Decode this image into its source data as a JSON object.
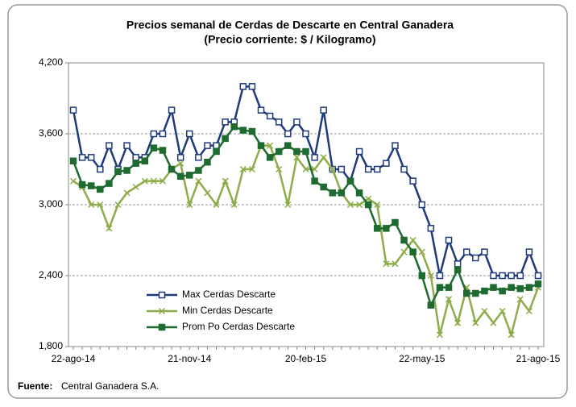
{
  "chart_data": {
    "type": "line",
    "title": "Precios semanal de Cerdas de Descarte en Central Ganadera",
    "subtitle": "(Precio corriente: $ / Kilogramo)",
    "categories": [
      "22-ago-14",
      null,
      null,
      null,
      null,
      null,
      null,
      null,
      null,
      null,
      null,
      null,
      null,
      "21-nov-14",
      null,
      null,
      null,
      null,
      null,
      null,
      null,
      null,
      null,
      null,
      null,
      null,
      "20-feb-15",
      null,
      null,
      null,
      null,
      null,
      null,
      null,
      null,
      null,
      null,
      null,
      null,
      "22-may-15",
      null,
      null,
      null,
      null,
      null,
      null,
      null,
      null,
      null,
      null,
      null,
      null,
      "21-ago-15"
    ],
    "series": [
      {
        "name": "Max Cerdas Descarte",
        "color": "#1f3a7a",
        "marker": "square-open",
        "values": [
          3800,
          3400,
          3400,
          3300,
          3500,
          3300,
          3500,
          3400,
          3400,
          3600,
          3600,
          3800,
          3400,
          3600,
          3400,
          3500,
          3500,
          3700,
          3700,
          4000,
          4000,
          3800,
          3750,
          3700,
          3600,
          3700,
          3600,
          3400,
          3800,
          3300,
          3300,
          3200,
          3450,
          3300,
          3300,
          3350,
          3500,
          3300,
          3200,
          3000,
          2800,
          2400,
          2700,
          2500,
          2600,
          2550,
          2600,
          2400,
          2400,
          2400,
          2400,
          2600,
          2400
        ]
      },
      {
        "name": "Min Cerdas Descarte",
        "color": "#8fac4a",
        "marker": "cross",
        "values": [
          3200,
          3150,
          3000,
          3000,
          2800,
          3000,
          3100,
          3150,
          3200,
          3200,
          3200,
          3300,
          3350,
          3000,
          3200,
          3100,
          3000,
          3200,
          3000,
          3300,
          3300,
          3500,
          3500,
          3300,
          3000,
          3400,
          3300,
          3300,
          3400,
          3300,
          3100,
          3000,
          3000,
          3050,
          3000,
          2500,
          2500,
          2600,
          2700,
          2600,
          2400,
          1900,
          2200,
          2000,
          2300,
          2000,
          2100,
          2000,
          2100,
          1900,
          2200,
          2100,
          2300
        ]
      },
      {
        "name": "Prom Po Cerdas Descarte",
        "color": "#1e6b30",
        "marker": "square",
        "values": [
          3370,
          3170,
          3160,
          3130,
          3180,
          3280,
          3290,
          3350,
          3370,
          3480,
          3460,
          3300,
          3240,
          3250,
          3290,
          3360,
          3450,
          3560,
          3660,
          3630,
          3620,
          3500,
          3400,
          3450,
          3500,
          3450,
          3450,
          3200,
          3150,
          3100,
          3100,
          3200,
          3100,
          3000,
          2800,
          2800,
          2850,
          2700,
          2600,
          2400,
          2150,
          2300,
          2300,
          2450,
          2250,
          2250,
          2270,
          2300,
          2270,
          2300,
          2290,
          2300,
          2330
        ]
      }
    ],
    "ylim": [
      1800,
      4200
    ],
    "yticks": [
      {
        "value": 1800,
        "label": "1,800"
      },
      {
        "value": 2400,
        "label": "2,400"
      },
      {
        "value": 3000,
        "label": "3,000"
      },
      {
        "value": 3600,
        "label": "3,600"
      },
      {
        "value": 4200,
        "label": "4,200"
      }
    ],
    "grid": true,
    "legend": "lower-left",
    "source_label": "Fuente:",
    "source": "Central Ganadera S.A."
  }
}
